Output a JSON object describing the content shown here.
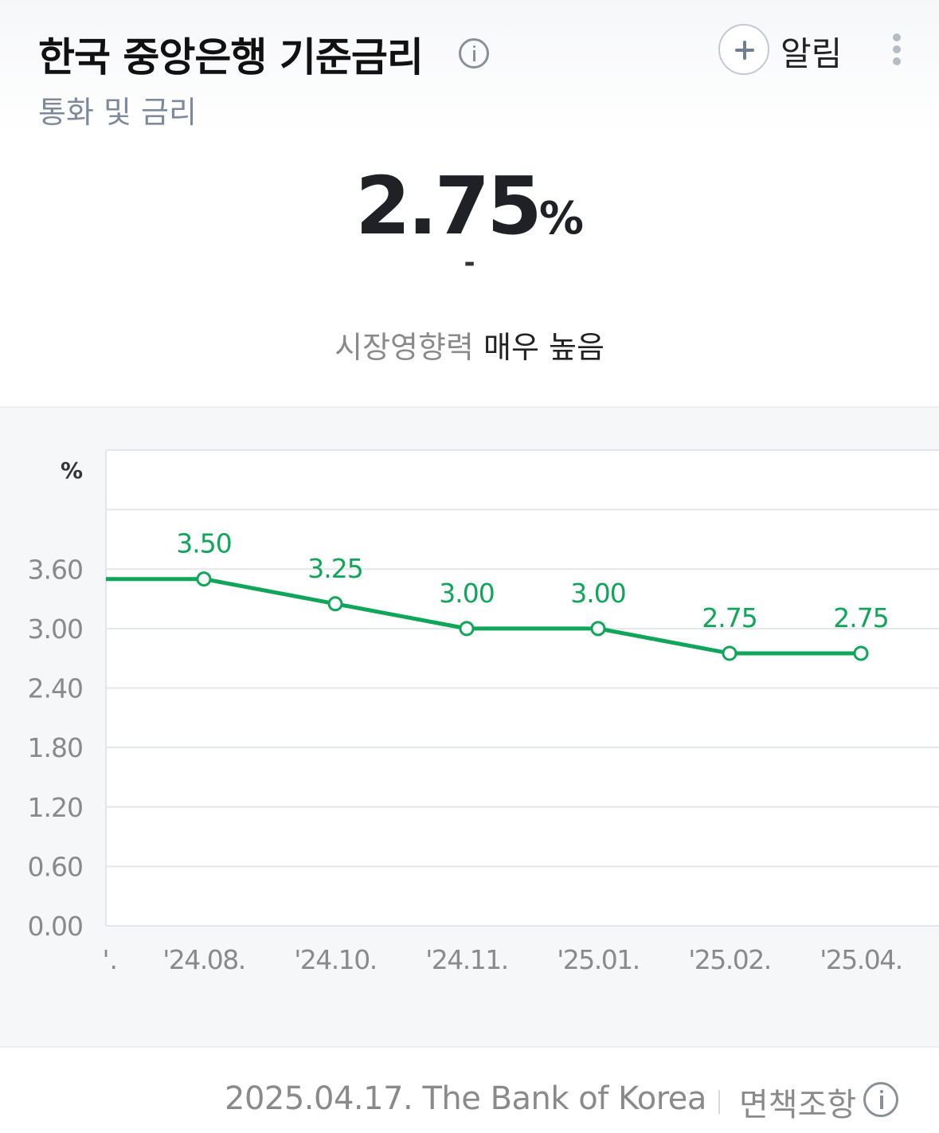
{
  "header": {
    "title": "한국 중앙은행 기준금리",
    "category": "통화 및 금리",
    "alert_label": "알림"
  },
  "summary": {
    "value": "2.75",
    "unit": "%",
    "change": "-",
    "influence_label": "시장영향력",
    "influence_value": "매우 높음"
  },
  "colors": {
    "line": "#0fa65a",
    "grid": "#e3e6ea",
    "axis_text": "#8a8a8a"
  },
  "chart_data": {
    "type": "line",
    "y_unit_label": "%",
    "y_ticks": [
      "0.00",
      "0.60",
      "1.20",
      "1.80",
      "2.40",
      "3.00",
      "3.60"
    ],
    "ylim": [
      0,
      4.8
    ],
    "x_first_partial_label": "'.",
    "categories": [
      "'24.08.",
      "'24.10.",
      "'24.11.",
      "'25.01.",
      "'25.02.",
      "'25.04."
    ],
    "values": [
      3.5,
      3.25,
      3.0,
      3.0,
      2.75,
      2.75
    ],
    "value_labels": [
      "3.50",
      "3.25",
      "3.00",
      "3.00",
      "2.75",
      "2.75"
    ],
    "line_extends_left_at": 3.5,
    "grid": true
  },
  "footer": {
    "source": "2025.04.17. The Bank of Korea",
    "disclaimer": "면책조항"
  }
}
